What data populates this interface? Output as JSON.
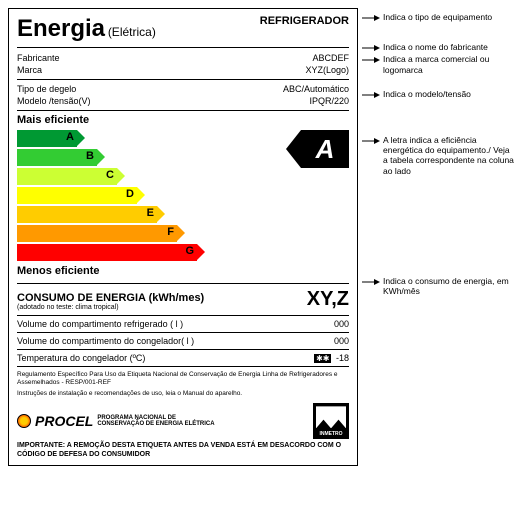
{
  "label": {
    "title": "Energia",
    "subtitle": "(Elétrica)",
    "equipment": "REFRIGERADOR",
    "fields": {
      "fabricante_label": "Fabricante",
      "fabricante_value": "ABCDEF",
      "marca_label": "Marca",
      "marca_value": "XYZ(Logo)",
      "degelo_label": "Tipo de degelo",
      "degelo_value": "ABC/Automático",
      "modelo_label": "Modelo /tensão(V)",
      "modelo_value": "IPQR/220"
    },
    "efficiency": {
      "top_label": "Mais eficiente",
      "bottom_label": "Menos eficiente",
      "badge": "A",
      "bars": [
        {
          "letter": "A",
          "color": "#009933",
          "width": 60
        },
        {
          "letter": "B",
          "color": "#33cc33",
          "width": 80
        },
        {
          "letter": "C",
          "color": "#ccff33",
          "width": 100
        },
        {
          "letter": "D",
          "color": "#ffff00",
          "width": 120
        },
        {
          "letter": "E",
          "color": "#ffcc00",
          "width": 140
        },
        {
          "letter": "F",
          "color": "#ff9900",
          "width": 160
        },
        {
          "letter": "G",
          "color": "#ff0000",
          "width": 180
        }
      ]
    },
    "consumo": {
      "label": "CONSUMO DE ENERGIA (kWh/mes)",
      "note": "(adotado no teste: clima tropical)",
      "value": "XY,Z"
    },
    "volumes": {
      "refrig_label": "Volume do compartimento refrigerado  ( l )",
      "refrig_value": "000",
      "cong_label": "Volume do compartimento do congelador( l )",
      "cong_value": "000",
      "temp_label": "Temperatura do congelador (ºC)",
      "temp_icon": "✱✱",
      "temp_value": "-18"
    },
    "regulation": "Regulamento Específico Para Uso da Etiqueta Nacional de Conservação de Energia Linha de Refrigeradores e Assemelhados - RESP/001-REF",
    "instructions": "Instruções de instalação e recomendações de uso, leia o Manual do aparelho.",
    "procel": {
      "name": "PROCEL",
      "sub1": "PROGRAMA NACIONAL DE",
      "sub2": "CONSERVAÇÃO DE ENERGIA ELÉTRICA"
    },
    "inmetro": "INMETRO",
    "important": "IMPORTANTE: A REMOÇÃO DESTA ETIQUETA ANTES DA VENDA ESTÁ EM DESACORDO COM O CÓDIGO DE DEFESA DO CONSUMIDOR"
  },
  "annotations": {
    "a1": "Indica o tipo de equipamento",
    "a2": "Indica o nome do  fabricante",
    "a3": "Indica a marca comercial ou logomarca",
    "a4": "Indica o modelo/tensão",
    "a5": "A letra indica a eficiência energética do equipamento./ Veja a tabela correspondente na coluna ao lado",
    "a6": "Indica o consumo de energia, em KWh/mês"
  }
}
